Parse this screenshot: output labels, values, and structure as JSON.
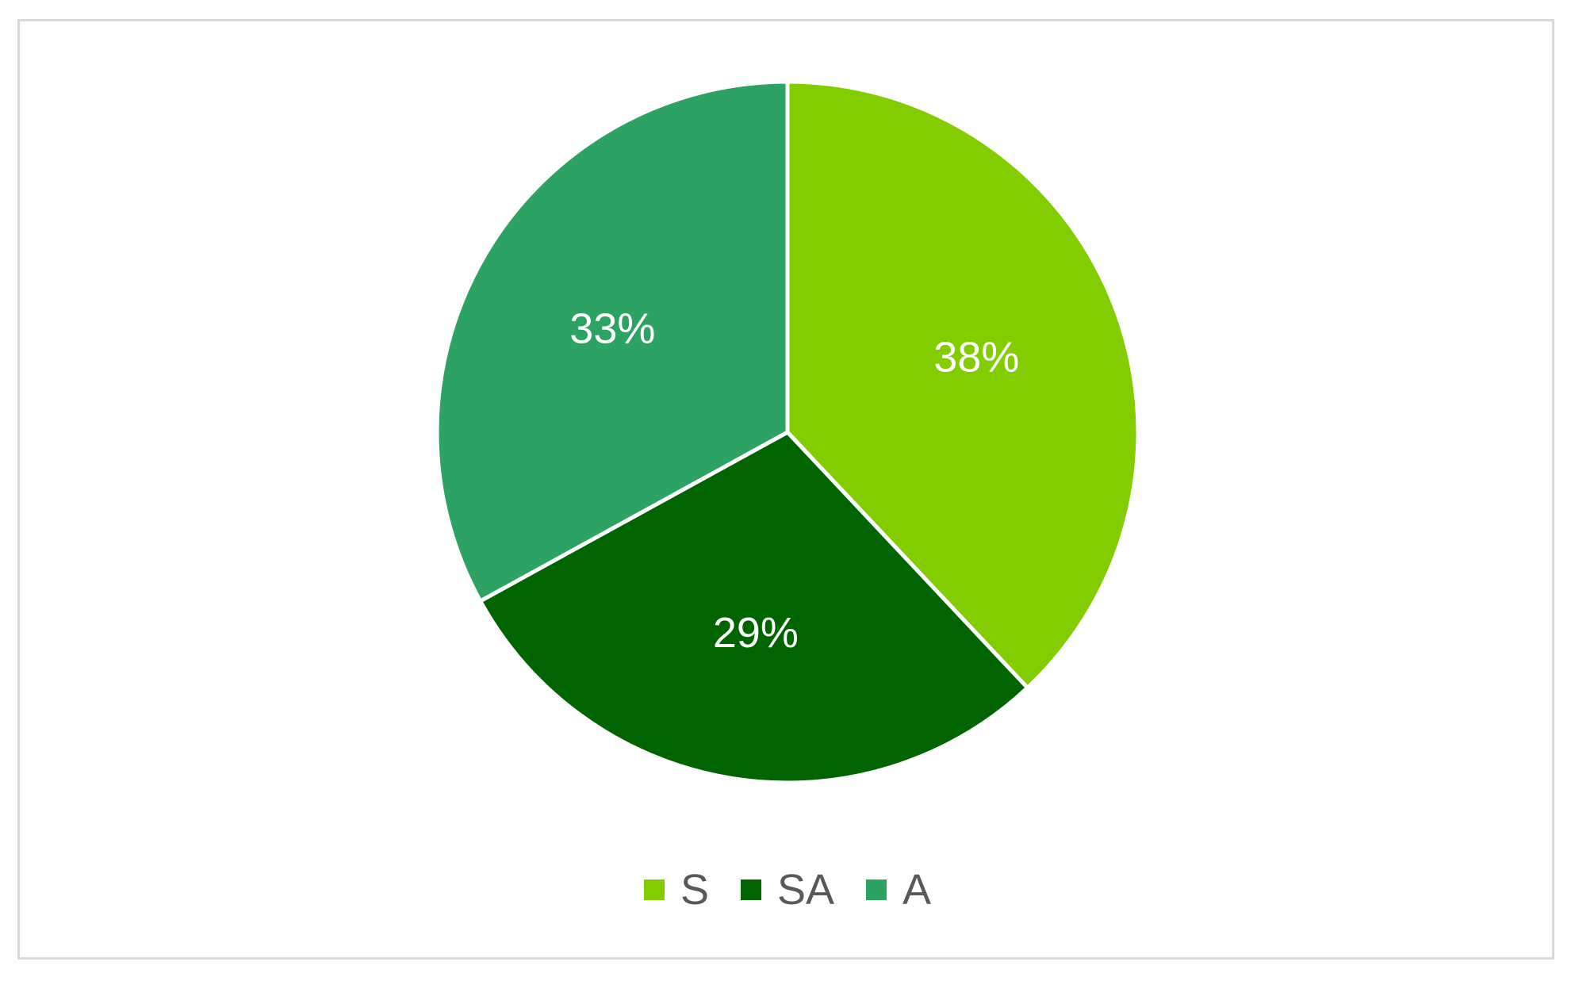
{
  "chart_data": {
    "type": "pie",
    "title": "",
    "slices": [
      {
        "label": "S",
        "value": 38,
        "display": "38%",
        "color": "#82cc00"
      },
      {
        "label": "SA",
        "value": 29,
        "display": "29%",
        "color": "#006400"
      },
      {
        "label": "A",
        "value": 33,
        "display": "33%",
        "color": "#2ca362"
      }
    ],
    "start_angle": "12 o'clock",
    "direction": "clockwise",
    "legend_position": "bottom",
    "data_labels": "inside"
  },
  "legend": {
    "items": [
      {
        "label": "S",
        "color": "#82cc00"
      },
      {
        "label": "SA",
        "color": "#006400"
      },
      {
        "label": "A",
        "color": "#2ca362"
      }
    ]
  }
}
